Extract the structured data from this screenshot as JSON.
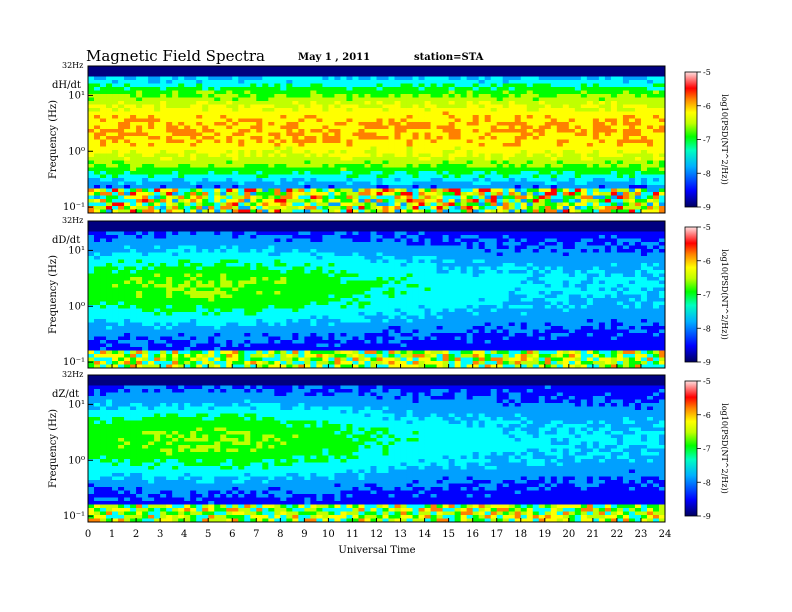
{
  "chart_data": {
    "type": "heatmap",
    "title": "Magnetic Field Spectra",
    "date": "May 1  , 2011",
    "station": "station=STA",
    "xlabel": "Universal Time",
    "xlim": [
      0,
      24
    ],
    "x_ticks": [
      "0",
      "1",
      "2",
      "3",
      "4",
      "5",
      "6",
      "7",
      "8",
      "9",
      "10",
      "11",
      "12",
      "13",
      "14",
      "15",
      "16",
      "17",
      "18",
      "19",
      "20",
      "21",
      "22",
      "23",
      "24"
    ],
    "y_top_label": "32Hz",
    "colorbar_label": "log10(PSD(NT^2/Hz))",
    "colorbar_range": [
      -9,
      -5
    ],
    "colorbar_ticks": [
      "-5",
      "-6",
      "-7",
      "-8",
      "-9"
    ],
    "panels": [
      {
        "component": "dH/dt",
        "ylabel": "Frequency (Hz)",
        "y_ticks": [
          "10¹",
          "10⁰",
          "10⁻¹"
        ],
        "level": "high"
      },
      {
        "component": "dD/dt",
        "ylabel": "Frequency (Hz)",
        "y_ticks": [
          "10¹",
          "10⁰",
          "10⁻¹"
        ],
        "level": "low"
      },
      {
        "component": "dZ/dt",
        "ylabel": "Frequency (Hz)",
        "y_ticks": [
          "10¹",
          "10⁰",
          "10⁻¹"
        ],
        "level": "low"
      }
    ],
    "colormap": [
      "#000080",
      "#0000ff",
      "#00a0ff",
      "#00ffff",
      "#00ff00",
      "#c0ff00",
      "#ffff00",
      "#ff8000",
      "#ff0000",
      "#ffc0c0"
    ]
  }
}
